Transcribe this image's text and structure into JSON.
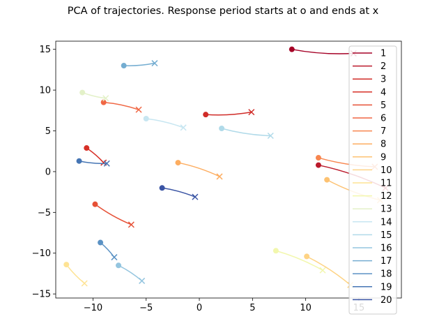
{
  "chart_data": {
    "type": "line",
    "title": "PCA of trajectories. Response period starts at o and ends at x",
    "xlabel": "",
    "ylabel": "",
    "xlim": [
      -13.5,
      19.0
    ],
    "ylim": [
      -15.5,
      16.0
    ],
    "x_ticks": [
      -10,
      -5,
      0,
      5,
      10,
      15
    ],
    "y_ticks": [
      -15,
      -10,
      -5,
      0,
      5,
      10,
      15
    ],
    "grid": false,
    "legend_placement": "right, extending below axes",
    "start_marker": "o",
    "end_marker": "x",
    "series": [
      {
        "name": "1",
        "color": "#a50026",
        "start": [
          8.7,
          15.0
        ],
        "end": [
          14.5,
          14.5
        ]
      },
      {
        "name": "2",
        "color": "#bb1a2b",
        "start": [
          11.2,
          0.8
        ],
        "end": [
          17.5,
          -2.0
        ]
      },
      {
        "name": "3",
        "color": "#d02c28",
        "start": [
          0.6,
          7.0
        ],
        "end": [
          4.9,
          7.3
        ]
      },
      {
        "name": "4",
        "color": "#d73027",
        "start": [
          -10.6,
          2.9
        ],
        "end": [
          -9.0,
          1.1
        ]
      },
      {
        "name": "5",
        "color": "#e65036",
        "start": [
          -9.8,
          -4.0
        ],
        "end": [
          -6.4,
          -6.5
        ]
      },
      {
        "name": "6",
        "color": "#f06744",
        "start": [
          -9.0,
          8.5
        ],
        "end": [
          -5.7,
          7.6
        ]
      },
      {
        "name": "7",
        "color": "#f8864f",
        "start": [
          11.2,
          1.7
        ],
        "end": [
          16.5,
          0.6
        ]
      },
      {
        "name": "8",
        "color": "#fdad60",
        "start": [
          -2.0,
          1.1
        ],
        "end": [
          1.9,
          -0.6
        ]
      },
      {
        "name": "9",
        "color": "#fdc272",
        "start": [
          12.0,
          -1.0
        ],
        "end": [
          17.0,
          -3.5
        ]
      },
      {
        "name": "10",
        "color": "#fed384",
        "start": [
          10.1,
          -10.4
        ],
        "end": [
          14.2,
          -13.9
        ]
      },
      {
        "name": "11",
        "color": "#fee394",
        "start": [
          -12.5,
          -11.4
        ],
        "end": [
          -10.8,
          -13.7
        ]
      },
      {
        "name": "12",
        "color": "#f2f7ad",
        "start": [
          7.2,
          -9.7
        ],
        "end": [
          11.6,
          -12.1
        ]
      },
      {
        "name": "13",
        "color": "#e3f1c8",
        "start": [
          -11.0,
          9.7
        ],
        "end": [
          -8.8,
          9.0
        ]
      },
      {
        "name": "14",
        "color": "#c7e6f1",
        "start": [
          -5.0,
          6.5
        ],
        "end": [
          -1.5,
          5.4
        ]
      },
      {
        "name": "15",
        "color": "#b0dae9",
        "start": [
          2.1,
          5.3
        ],
        "end": [
          6.7,
          4.4
        ]
      },
      {
        "name": "16",
        "color": "#94c5df",
        "start": [
          -7.6,
          -11.5
        ],
        "end": [
          -5.4,
          -13.4
        ]
      },
      {
        "name": "17",
        "color": "#74add1",
        "start": [
          -7.1,
          13.0
        ],
        "end": [
          -4.2,
          13.3
        ]
      },
      {
        "name": "18",
        "color": "#5b92c4",
        "start": [
          -9.3,
          -8.7
        ],
        "end": [
          -8.0,
          -10.5
        ]
      },
      {
        "name": "19",
        "color": "#4575b4",
        "start": [
          -11.3,
          1.3
        ],
        "end": [
          -8.7,
          1.0
        ]
      },
      {
        "name": "20",
        "color": "#3a54a4",
        "start": [
          -3.5,
          -2.0
        ],
        "end": [
          -0.4,
          -3.1
        ]
      }
    ]
  }
}
